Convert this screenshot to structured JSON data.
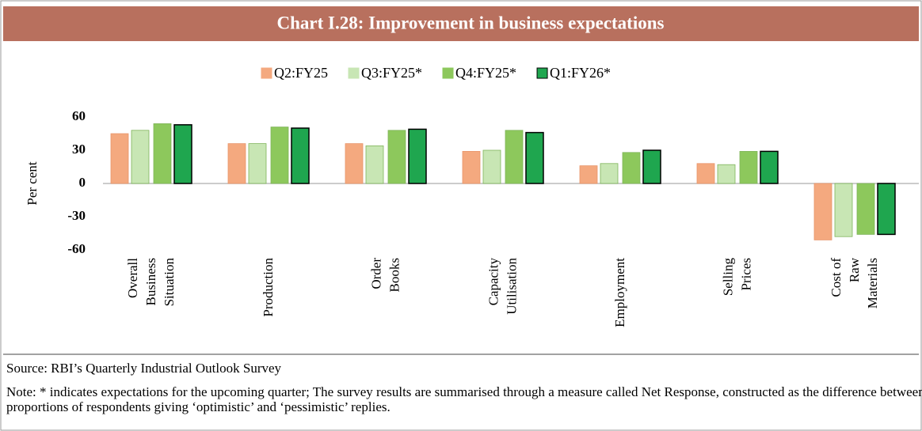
{
  "chart_data": {
    "type": "bar",
    "title": "Chart I.28: Improvement in business expectations",
    "y_label": "Per cent",
    "categories": [
      "Overall\nBusiness\nSituation",
      "Production",
      "Order\nBooks",
      "Capacity\nUtilisation",
      "Employment",
      "Selling\nPrices",
      "Cost of\nRaw\nMaterials"
    ],
    "series": [
      {
        "name": "Q2:FY25",
        "color": "#f4a97f",
        "values": [
          45,
          36,
          36,
          29,
          16,
          18,
          -51
        ]
      },
      {
        "name": "Q3:FY25*",
        "color": "#c8e6b4",
        "values": [
          48,
          36,
          34,
          30,
          18,
          17,
          -48
        ]
      },
      {
        "name": "Q4:FY25*",
        "color": "#8dc85c",
        "values": [
          54,
          51,
          48,
          48,
          28,
          29,
          -46
        ]
      },
      {
        "name": "Q1:FY26*",
        "color": "#1fa64f",
        "values": [
          53,
          50,
          49,
          46,
          30,
          29,
          -46
        ]
      }
    ],
    "ylim": [
      -60,
      60
    ],
    "yticks": [
      60,
      30,
      0,
      -30,
      -60
    ],
    "source": "Source: RBI’s Quarterly Industrial Outlook Survey",
    "note": "Note: * indicates expectations for the upcoming quarter; The survey results are summarised through a measure called Net Response, constructed as the difference between the proportions of respondents giving ‘optimistic’ and ‘pessimistic’ replies."
  }
}
